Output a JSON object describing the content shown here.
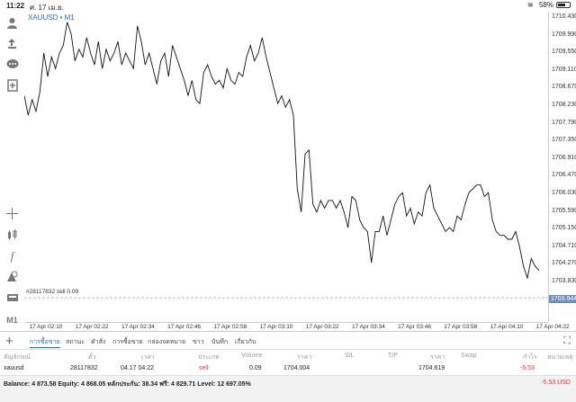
{
  "statusbar": {
    "time": "11:22",
    "date": "ศ. 17 เม.ย.",
    "battery": "58%"
  },
  "left_toolbar": {
    "tools": [
      "user-icon",
      "trade-icon",
      "chat-icon",
      "new-order-icon",
      "crosshair-icon",
      "indicators-icon",
      "function-icon",
      "shapes-icon",
      "objects-icon"
    ],
    "timeframe": "M1"
  },
  "chart": {
    "symbol_label": "XAUUSD • M1",
    "order_label": "#28117832 sell 0.09",
    "current_price": "1703.944",
    "price_ticks": [
      "1710.430",
      "1709.990",
      "1709.550",
      "1709.110",
      "1708.670",
      "1708.230",
      "1707.790",
      "1707.350",
      "1706.910",
      "1706.470",
      "1706.030",
      "1705.590",
      "1705.150",
      "1704.710",
      "1704.270",
      "1703.830"
    ],
    "time_ticks": [
      "17 Apr 02:10",
      "17 Apr 02:22",
      "17 Apr 02:34",
      "17 Apr 02:46",
      "17 Apr 02:58",
      "17 Apr 03:10",
      "17 Apr 03:22",
      "17 Apr 03:34",
      "17 Apr 03:46",
      "17 Apr 03:58",
      "17 Apr 04:10",
      "17 Apr 04:22"
    ]
  },
  "chart_data": {
    "type": "line",
    "title": "XAUUSD • M1",
    "xlabel": "",
    "ylabel": "",
    "ylim": [
      1703.61,
      1710.43
    ],
    "x": [
      "02:10",
      "02:11",
      "02:12",
      "02:13",
      "02:14",
      "02:15",
      "02:16",
      "02:17",
      "02:18",
      "02:19",
      "02:20",
      "02:21",
      "02:22",
      "02:23",
      "02:24",
      "02:25",
      "02:26",
      "02:27",
      "02:28",
      "02:29",
      "02:30",
      "02:31",
      "02:32",
      "02:33",
      "02:34",
      "02:35",
      "02:36",
      "02:37",
      "02:38",
      "02:39",
      "02:40",
      "02:41",
      "02:42",
      "02:43",
      "02:44",
      "02:45",
      "02:46",
      "02:47",
      "02:48",
      "02:49",
      "02:50",
      "02:51",
      "02:52",
      "02:53",
      "02:54",
      "02:55",
      "02:56",
      "02:57",
      "02:58",
      "02:59",
      "03:00",
      "03:01",
      "03:02",
      "03:03",
      "03:04",
      "03:05",
      "03:06",
      "03:07",
      "03:08",
      "03:09",
      "03:10",
      "03:11",
      "03:12",
      "03:13",
      "03:14",
      "03:15",
      "03:16",
      "03:17",
      "03:18",
      "03:19",
      "03:20",
      "03:21",
      "03:22",
      "03:23",
      "03:24",
      "03:25",
      "03:26",
      "03:27",
      "03:28",
      "03:29",
      "03:30",
      "03:31",
      "03:32",
      "03:33",
      "03:34",
      "03:35",
      "03:36",
      "03:37",
      "03:38",
      "03:39",
      "03:40",
      "03:41",
      "03:42",
      "03:43",
      "03:44",
      "03:45",
      "03:46",
      "03:47",
      "03:48",
      "03:49",
      "03:50",
      "03:51",
      "03:52",
      "03:53",
      "03:54",
      "03:55",
      "03:56",
      "03:57",
      "03:58",
      "03:59",
      "04:00",
      "04:01",
      "04:02",
      "04:03",
      "04:04",
      "04:05",
      "04:06",
      "04:07",
      "04:08",
      "04:09",
      "04:10",
      "04:11",
      "04:12",
      "04:13",
      "04:14",
      "04:15",
      "04:16",
      "04:17",
      "04:18",
      "04:19",
      "04:20",
      "04:21",
      "04:22"
    ],
    "series": [
      {
        "values": [
          1708.4,
          1707.9,
          1708.3,
          1708.0,
          1708.5,
          1709.5,
          1708.9,
          1709.4,
          1709.1,
          1709.5,
          1709.7,
          1710.3,
          1710.0,
          1709.3,
          1709.6,
          1709.4,
          1709.9,
          1709.5,
          1709.2,
          1709.8,
          1709.1,
          1709.6,
          1709.3,
          1709.5,
          1709.8,
          1709.2,
          1709.5,
          1709.3,
          1709.1,
          1710.2,
          1709.8,
          1709.2,
          1709.5,
          1709.1,
          1708.7,
          1709.3,
          1709.5,
          1708.9,
          1709.7,
          1709.4,
          1709.1,
          1708.8,
          1708.4,
          1708.8,
          1708.3,
          1708.2,
          1709.0,
          1709.2,
          1708.9,
          1708.7,
          1708.8,
          1708.6,
          1709.1,
          1708.8,
          1708.7,
          1709.0,
          1708.9,
          1709.4,
          1709.7,
          1709.3,
          1709.5,
          1709.9,
          1709.4,
          1709.0,
          1708.6,
          1708.2,
          1708.4,
          1708.1,
          1708.3,
          1707.9,
          1706.0,
          1705.4,
          1706.9,
          1707.0,
          1705.6,
          1705.4,
          1705.7,
          1705.5,
          1705.7,
          1705.7,
          1705.5,
          1705.7,
          1705.4,
          1705.0,
          1705.8,
          1705.7,
          1705.2,
          1705.0,
          1704.9,
          1704.1,
          1704.9,
          1704.9,
          1705.3,
          1704.8,
          1705.2,
          1705.6,
          1705.8,
          1705.9,
          1705.3,
          1705.5,
          1705.1,
          1705.4,
          1705.3,
          1705.9,
          1706.1,
          1705.5,
          1705.3,
          1705.1,
          1704.9,
          1705.0,
          1704.9,
          1705.3,
          1705.2,
          1705.6,
          1705.9,
          1706.0,
          1706.1,
          1706.1,
          1705.8,
          1705.9,
          1705.2,
          1704.9,
          1704.8,
          1704.8,
          1704.7,
          1704.7,
          1704.9,
          1704.5,
          1704.0,
          1703.7,
          1704.2,
          1704.0,
          1703.9
        ]
      }
    ]
  },
  "tabs": {
    "items": [
      "การซื้อขาย",
      "สถานะ",
      "คำสั่ง",
      "การซื้อขาย",
      "กล่องจดหมาย",
      "ข่าว",
      "บันทึก",
      "เกี่ยวกับ"
    ]
  },
  "table": {
    "headers": [
      "สัญลักษณ์",
      "ตั๋ว",
      "เวลา",
      "ประเภท",
      "Volume",
      "ราคา",
      "S/L",
      "T/P",
      "ราคา",
      "Swap",
      "กำไร",
      "หมายเหตุ"
    ],
    "row": {
      "symbol": "xauusd",
      "ticket": "28117832",
      "time": "04.17 04:22",
      "type": "sell",
      "volume": "0.09",
      "price_open": "1704.004",
      "price_current": "1704.619",
      "profit": "-5.53"
    }
  },
  "balance": {
    "text": "Balance: 4 873.58 Equity: 4 868.05 หลักประกัน: 38.34 ฟรี: 4 829.71 Level: 12 697.05%",
    "pl": "-5.53  USD"
  },
  "colors": {
    "accent": "#2f6db5",
    "loss": "#d33333",
    "line": "#111111",
    "current_price_bg": "#6f8fb8"
  }
}
